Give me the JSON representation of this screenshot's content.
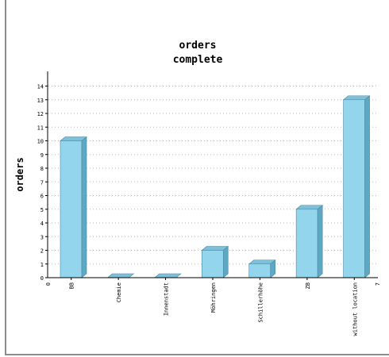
{
  "chart_data": {
    "type": "bar",
    "title": "orders",
    "subtitle": "complete",
    "ylabel": "orders",
    "xlabel": "",
    "categories": [
      "BB",
      "Chemie",
      "Innenstadt",
      "Möhringen",
      "Schillerhöhe",
      "ZB",
      "without location"
    ],
    "values": [
      10,
      0,
      0,
      2,
      1,
      5,
      13
    ],
    "ylim": [
      0,
      14
    ],
    "yticks": [
      "0",
      "1",
      "2",
      "3",
      "4",
      "5",
      "6",
      "7",
      "8",
      "9",
      "10",
      "11",
      "12",
      "13",
      "14"
    ],
    "x_range_labels": {
      "start": "0",
      "end": "7"
    },
    "grid": true,
    "colors": {
      "bar_front": "#94d5ee",
      "bar_side": "#5fa8c4",
      "bar_top": "#7ec0d9",
      "bar_outline": "#4a8aa3",
      "grid": "#bbbbbb",
      "axis": "#000000"
    }
  }
}
